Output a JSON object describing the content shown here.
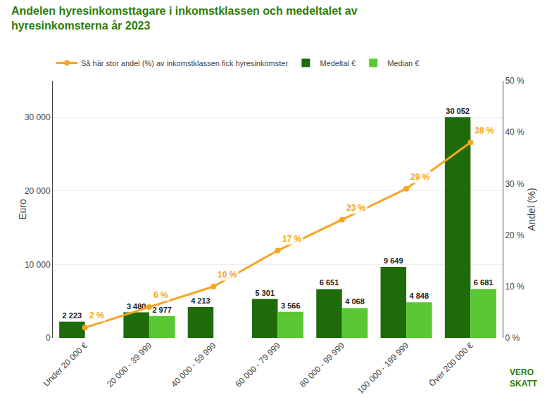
{
  "chart_data": {
    "type": "bar",
    "title": "Andelen hyresinkomsttagare i inkomstklassen och medeltalet av\nhyresinkomsterna år 2023",
    "categories": [
      "Under 20 000 €",
      "20 000 - 39 999",
      "40 000 - 59 999",
      "60 000 - 79 999",
      "80 000 - 99 999",
      "100 000 - 199 999",
      "Över 200 000 €"
    ],
    "series": [
      {
        "name": "Medeltal €",
        "type": "bar",
        "color": "#1e6b0a",
        "values": [
          2223,
          3480,
          4213,
          5301,
          6651,
          9649,
          30052
        ],
        "value_labels": [
          "2 223",
          "3 480",
          "4 213",
          "5 301",
          "6 651",
          "9 649",
          "30 052"
        ]
      },
      {
        "name": "Median €",
        "type": "bar",
        "color": "#5ac832",
        "values": [
          0,
          2977,
          0,
          3566,
          4068,
          4848,
          6681
        ],
        "value_labels": [
          null,
          "2 977",
          null,
          "3 566",
          "4 068",
          "4 848",
          "6 681"
        ]
      },
      {
        "name": "Så här stor andel (%) av inkomstklassen fick hyresinkomster",
        "type": "line",
        "axis": "y2",
        "color": "#f5a623",
        "marker": "circle",
        "values": [
          2,
          6,
          10,
          17,
          23,
          29,
          38
        ],
        "value_labels": [
          "2 %",
          "6 %",
          "10 %",
          "17 %",
          "23 %",
          "29 %",
          "38 %"
        ]
      }
    ],
    "ylabel": "Euro",
    "y2label": "Andel (%)",
    "ylim": [
      0,
      35000
    ],
    "yticks": [
      0,
      {
        "value": 10000,
        "label": "10 000"
      },
      {
        "value": 20000,
        "label": "20 000"
      },
      {
        "value": 30000,
        "label": "30 000"
      }
    ],
    "y2lim": [
      0,
      50
    ],
    "y2ticks": [
      {
        "value": 0,
        "label": "0 %"
      },
      {
        "value": 10,
        "label": "10 %"
      },
      {
        "value": 20,
        "label": "20 %"
      },
      {
        "value": 30,
        "label": "30 %"
      },
      {
        "value": 40,
        "label": "40 %"
      },
      {
        "value": 50,
        "label": "50 %"
      }
    ],
    "grid": true,
    "legend": "upper left",
    "data_labels": true,
    "annotations": [
      "VERO\nSKATT"
    ]
  }
}
